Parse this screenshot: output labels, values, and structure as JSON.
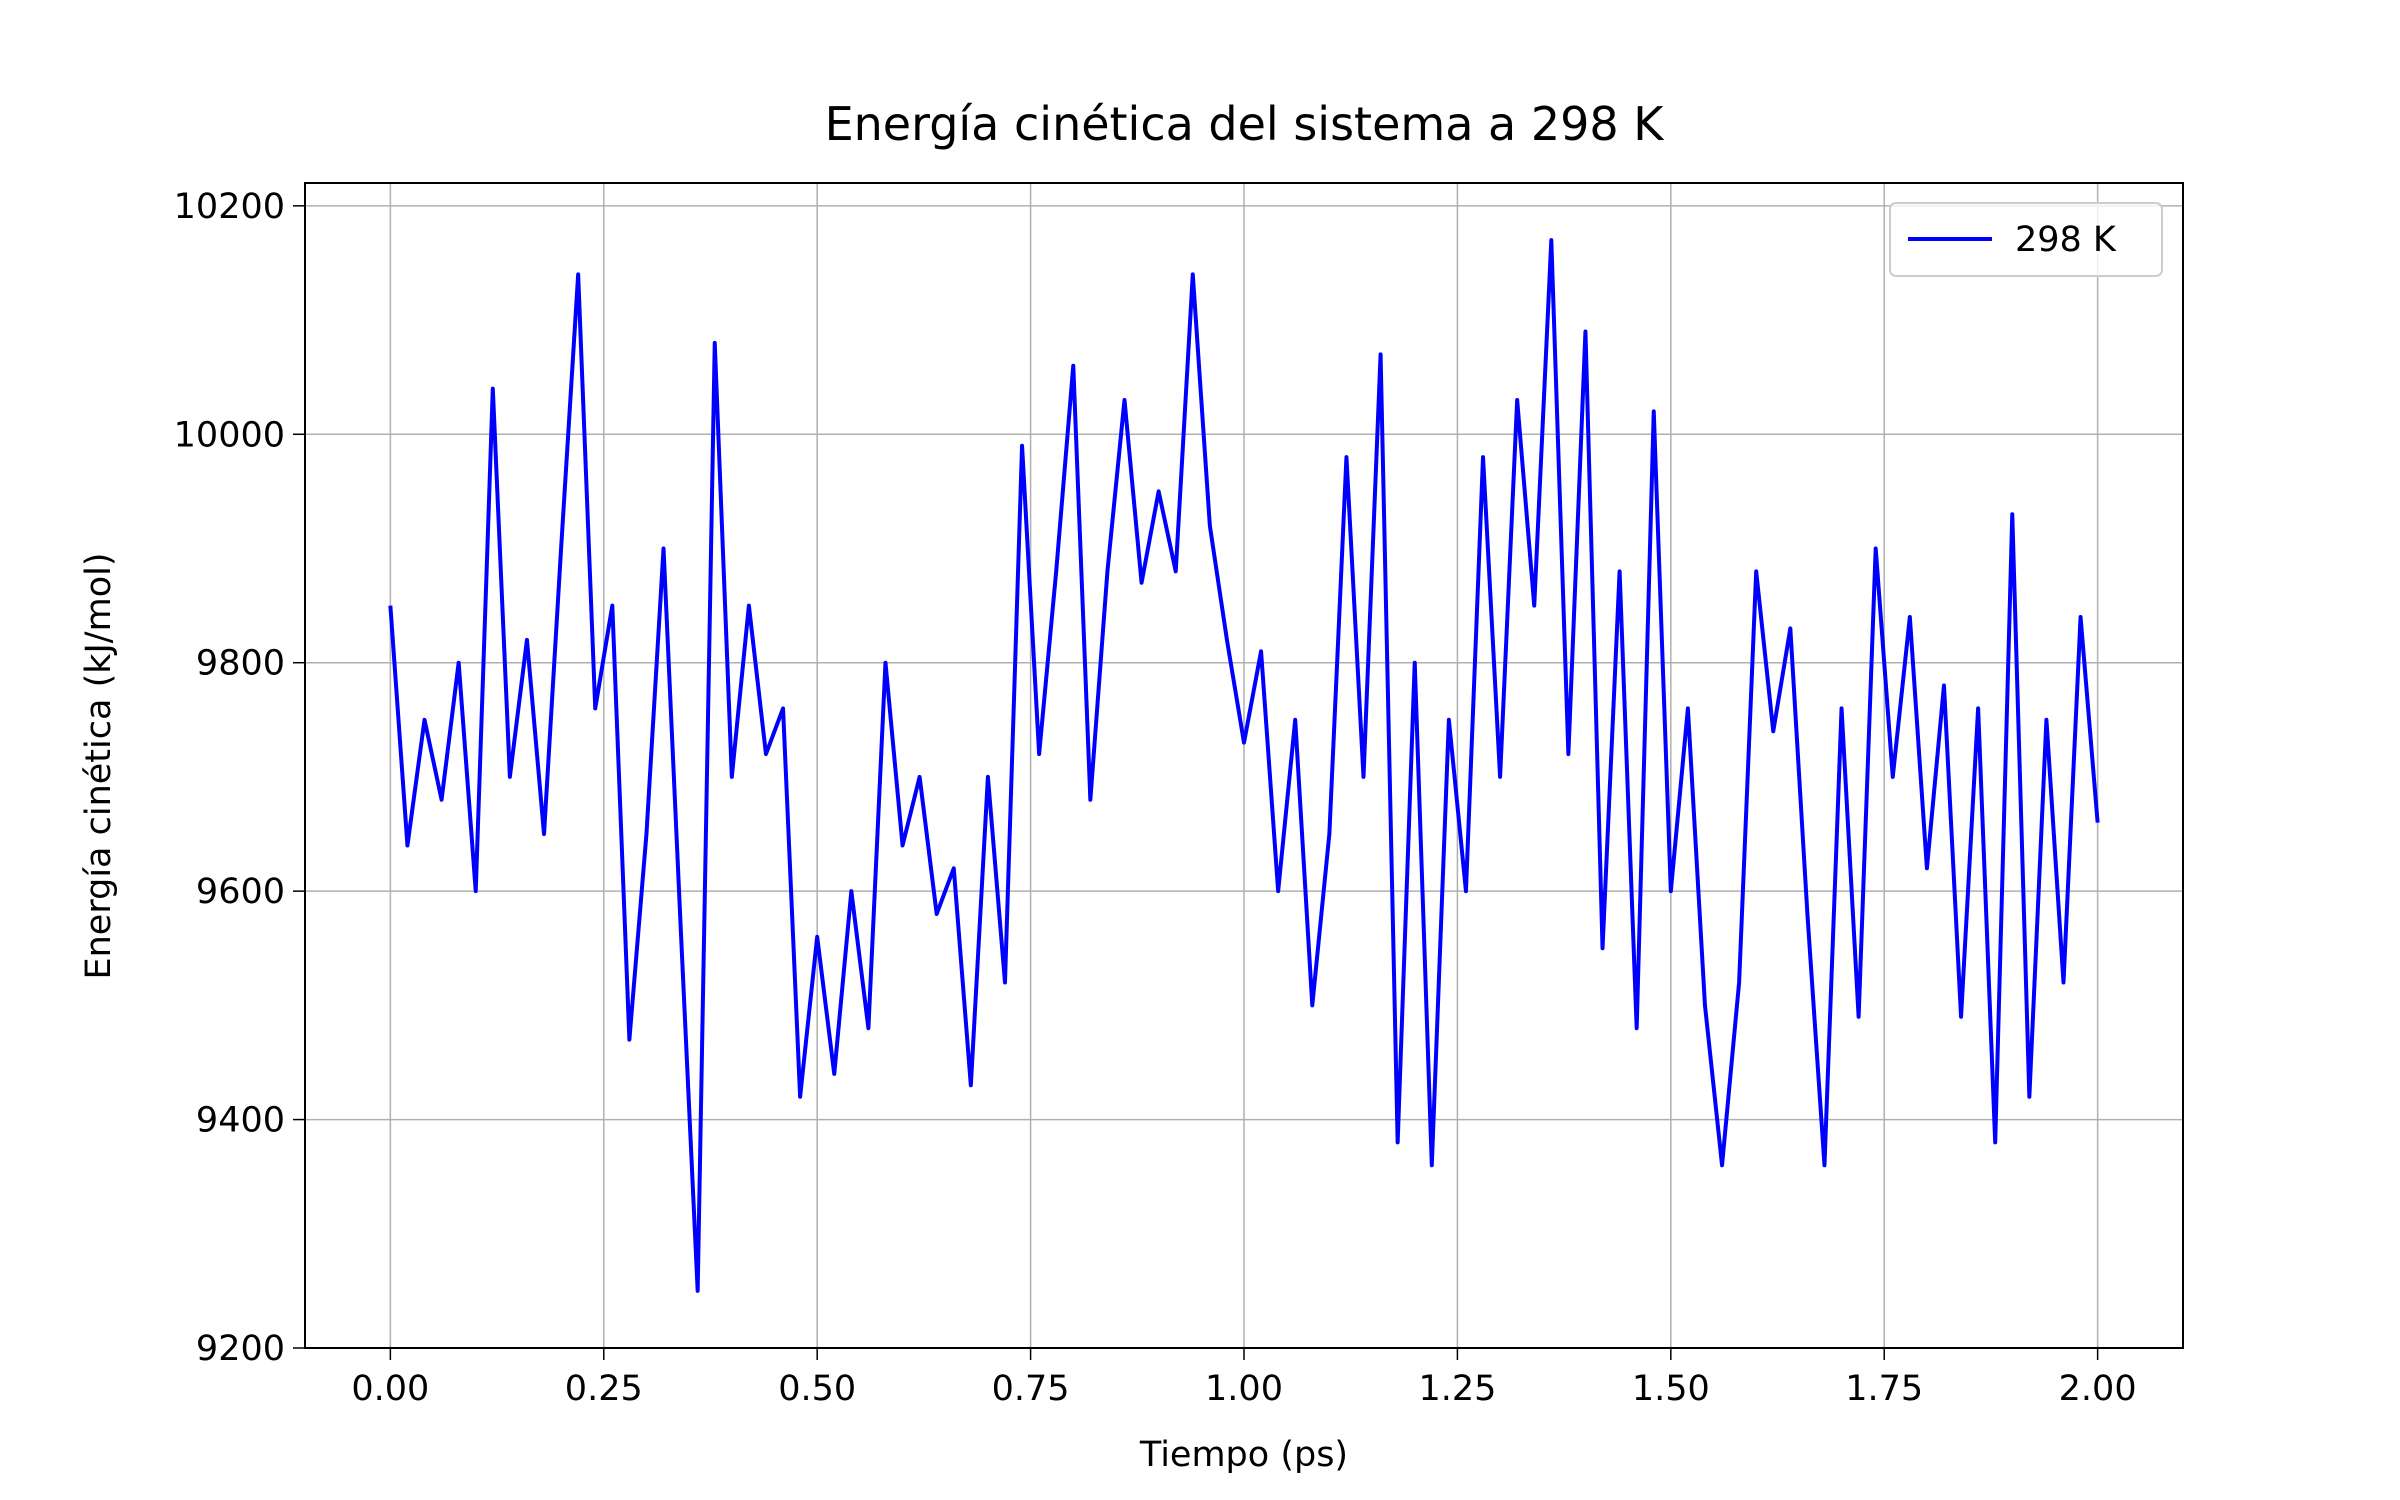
{
  "chart_data": {
    "type": "line",
    "title": "Energía cinética del sistema a 298 K",
    "x_label": "Tiempo (ps)",
    "y_label": "Energía cinética (kJ/mol)",
    "x": [
      0.0,
      0.02,
      0.04,
      0.06,
      0.08,
      0.1,
      0.12,
      0.14,
      0.16,
      0.18,
      0.2,
      0.22,
      0.24,
      0.26,
      0.28,
      0.3,
      0.32,
      0.34,
      0.36,
      0.38,
      0.4,
      0.42,
      0.44,
      0.46,
      0.48,
      0.5,
      0.52,
      0.54,
      0.56,
      0.58,
      0.6,
      0.62,
      0.64,
      0.66,
      0.68,
      0.7,
      0.72,
      0.74,
      0.76,
      0.78,
      0.8,
      0.82,
      0.84,
      0.86,
      0.88,
      0.9,
      0.92,
      0.94,
      0.96,
      0.98,
      1.0,
      1.02,
      1.04,
      1.06,
      1.08,
      1.1,
      1.12,
      1.14,
      1.16,
      1.18,
      1.2,
      1.22,
      1.24,
      1.26,
      1.28,
      1.3,
      1.32,
      1.34,
      1.36,
      1.38,
      1.4,
      1.42,
      1.44,
      1.46,
      1.48,
      1.5,
      1.52,
      1.54,
      1.56,
      1.58,
      1.6,
      1.62,
      1.64,
      1.66,
      1.68,
      1.7,
      1.72,
      1.74,
      1.76,
      1.78,
      1.8,
      1.82,
      1.84,
      1.86,
      1.88,
      1.9,
      1.92,
      1.94,
      1.96,
      1.98,
      2.0
    ],
    "series": [
      {
        "name": "298 K",
        "color": "#0000ff",
        "values": [
          9850,
          9640,
          9750,
          9680,
          9800,
          9600,
          10040,
          9700,
          9820,
          9650,
          9900,
          10140,
          9760,
          9850,
          9470,
          9650,
          9900,
          9570,
          9250,
          10080,
          9700,
          9850,
          9720,
          9760,
          9420,
          9560,
          9440,
          9600,
          9480,
          9800,
          9640,
          9700,
          9580,
          9620,
          9430,
          9700,
          9520,
          9990,
          9720,
          9880,
          10060,
          9680,
          9880,
          10030,
          9870,
          9950,
          9880,
          10140,
          9920,
          9820,
          9730,
          9810,
          9600,
          9750,
          9500,
          9650,
          9980,
          9700,
          10070,
          9380,
          9800,
          9360,
          9750,
          9600,
          9980,
          9700,
          10030,
          9850,
          10170,
          9720,
          10090,
          9550,
          9880,
          9480,
          10020,
          9600,
          9760,
          9500,
          9360,
          9520,
          9880,
          9740,
          9830,
          9580,
          9360,
          9760,
          9490,
          9900,
          9700,
          9840,
          9620,
          9780,
          9490,
          9760,
          9380,
          9930,
          9420,
          9750,
          9520,
          9840,
          9660
        ]
      }
    ],
    "xlim": [
      -0.1,
      2.1
    ],
    "ylim": [
      9200,
      10220
    ],
    "xticks": [
      {
        "value": 0,
        "label": "0.00"
      },
      {
        "value": 0.25,
        "label": "0.25"
      },
      {
        "value": 0.5,
        "label": "0.50"
      },
      {
        "value": 0.75,
        "label": "0.75"
      },
      {
        "value": 1,
        "label": "1.00"
      },
      {
        "value": 1.25,
        "label": "1.25"
      },
      {
        "value": 1.5,
        "label": "1.50"
      },
      {
        "value": 1.75,
        "label": "1.75"
      },
      {
        "value": 2,
        "label": "2.00"
      }
    ],
    "yticks": [
      9200,
      9400,
      9600,
      9800,
      10000,
      10200
    ],
    "grid": true,
    "legend": "upper right"
  }
}
